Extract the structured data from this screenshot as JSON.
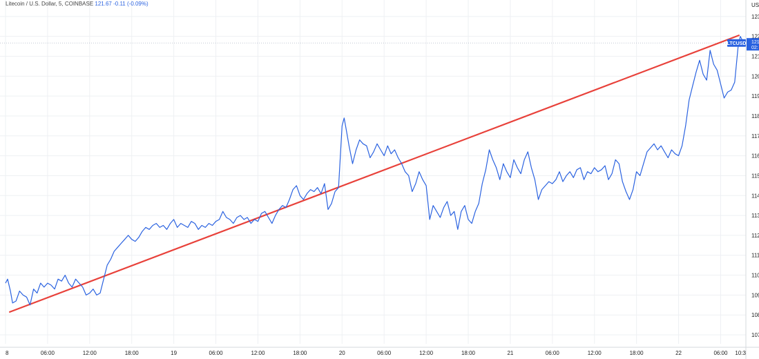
{
  "header": {
    "symbol_text": "Litecoin / U.S. Dollar, 5, COINBASE",
    "last": "121.67",
    "change": "-0.11",
    "change_pct": "(-0.09%)"
  },
  "price_axis": {
    "currency": "US",
    "ticks": [
      "123.",
      "122.",
      "121.",
      "120.",
      "119.",
      "118.",
      "117.",
      "116.",
      "115.",
      "114.",
      "113.",
      "112.",
      "111.",
      "110.",
      "109.",
      "108.",
      "107."
    ],
    "tick_values": [
      123,
      122,
      121,
      120,
      119,
      118,
      117,
      116,
      115,
      114,
      113,
      112,
      111,
      110,
      109,
      108,
      107
    ],
    "ylim": [
      106.55,
      123.55
    ]
  },
  "last_label": {
    "symbol": "LTCUSD",
    "price": "121.",
    "countdown": "02:"
  },
  "colors": {
    "series": "#2a62e0",
    "trend": "#e8413a",
    "grid": "#eef0f3",
    "axis_text": "#222222",
    "label_bg": "#2a62e0"
  },
  "chart_data": {
    "type": "line",
    "x_unit": "hours since first sample",
    "xlim": [
      0,
      105.6
    ],
    "x_ticks": [
      {
        "label": "8",
        "x": 0
      },
      {
        "label": "06:00",
        "x": 6
      },
      {
        "label": "12:00",
        "x": 12
      },
      {
        "label": "18:00",
        "x": 18
      },
      {
        "label": "19",
        "x": 24
      },
      {
        "label": "06:00",
        "x": 30
      },
      {
        "label": "12:00",
        "x": 36
      },
      {
        "label": "18:00",
        "x": 42
      },
      {
        "label": "20",
        "x": 48
      },
      {
        "label": "06:00",
        "x": 54
      },
      {
        "label": "12:00",
        "x": 60
      },
      {
        "label": "18:00",
        "x": 66
      },
      {
        "label": "21",
        "x": 72
      },
      {
        "label": "06:00",
        "x": 78
      },
      {
        "label": "12:00",
        "x": 84
      },
      {
        "label": "18:00",
        "x": 90
      },
      {
        "label": "22",
        "x": 96
      },
      {
        "label": "06:00",
        "x": 102
      },
      {
        "label": "10:3",
        "x": 105.6
      }
    ],
    "series": [
      {
        "name": "LTCUSD",
        "points": [
          [
            0,
            109.6
          ],
          [
            0.3,
            109.8
          ],
          [
            0.7,
            109.2
          ],
          [
            1,
            108.6
          ],
          [
            1.5,
            108.7
          ],
          [
            2,
            109.2
          ],
          [
            2.5,
            109
          ],
          [
            3,
            108.9
          ],
          [
            3.5,
            108.5
          ],
          [
            4,
            109.3
          ],
          [
            4.5,
            109.1
          ],
          [
            5,
            109.6
          ],
          [
            5.5,
            109.4
          ],
          [
            6,
            109.6
          ],
          [
            6.5,
            109.5
          ],
          [
            7,
            109.3
          ],
          [
            7.5,
            109.8
          ],
          [
            8,
            109.7
          ],
          [
            8.5,
            110
          ],
          [
            9,
            109.6
          ],
          [
            9.5,
            109.4
          ],
          [
            10,
            109.8
          ],
          [
            10.5,
            109.6
          ],
          [
            11,
            109.4
          ],
          [
            11.5,
            109
          ],
          [
            12,
            109.1
          ],
          [
            12.5,
            109.3
          ],
          [
            13,
            109.0
          ],
          [
            13.5,
            109.1
          ],
          [
            14,
            109.8
          ],
          [
            14.5,
            110.5
          ],
          [
            15,
            110.8
          ],
          [
            15.5,
            111.2
          ],
          [
            16,
            111.4
          ],
          [
            16.5,
            111.6
          ],
          [
            17,
            111.8
          ],
          [
            17.5,
            112
          ],
          [
            18,
            111.8
          ],
          [
            18.5,
            111.7
          ],
          [
            19,
            111.9
          ],
          [
            19.5,
            112.2
          ],
          [
            20,
            112.4
          ],
          [
            20.5,
            112.3
          ],
          [
            21,
            112.5
          ],
          [
            21.5,
            112.6
          ],
          [
            22,
            112.4
          ],
          [
            22.5,
            112.5
          ],
          [
            23,
            112.3
          ],
          [
            23.5,
            112.6
          ],
          [
            24,
            112.8
          ],
          [
            24.5,
            112.4
          ],
          [
            25,
            112.6
          ],
          [
            25.5,
            112.5
          ],
          [
            26,
            112.4
          ],
          [
            26.5,
            112.7
          ],
          [
            27,
            112.6
          ],
          [
            27.5,
            112.3
          ],
          [
            28,
            112.5
          ],
          [
            28.5,
            112.4
          ],
          [
            29,
            112.6
          ],
          [
            29.5,
            112.5
          ],
          [
            30,
            112.7
          ],
          [
            30.5,
            112.8
          ],
          [
            31,
            113.2
          ],
          [
            31.5,
            112.9
          ],
          [
            32,
            112.8
          ],
          [
            32.5,
            112.6
          ],
          [
            33,
            112.9
          ],
          [
            33.5,
            113
          ],
          [
            34,
            112.8
          ],
          [
            34.5,
            112.9
          ],
          [
            35,
            112.6
          ],
          [
            35.5,
            112.8
          ],
          [
            36,
            112.7
          ],
          [
            36.5,
            113.1
          ],
          [
            37,
            113.2
          ],
          [
            37.5,
            112.9
          ],
          [
            38,
            112.6
          ],
          [
            38.5,
            113
          ],
          [
            39,
            113.3
          ],
          [
            39.5,
            113.5
          ],
          [
            40,
            113.4
          ],
          [
            40.5,
            113.8
          ],
          [
            41,
            114.3
          ],
          [
            41.5,
            114.5
          ],
          [
            42,
            114
          ],
          [
            42.5,
            113.8
          ],
          [
            43,
            114.1
          ],
          [
            43.5,
            114.3
          ],
          [
            44,
            114.2
          ],
          [
            44.5,
            114.4
          ],
          [
            45,
            114.1
          ],
          [
            45.5,
            114.6
          ],
          [
            46,
            113.3
          ],
          [
            46.5,
            113.6
          ],
          [
            47,
            114.2
          ],
          [
            47.5,
            114.4
          ],
          [
            48,
            117.5
          ],
          [
            48.3,
            117.9
          ],
          [
            48.6,
            117.3
          ],
          [
            49,
            116.5
          ],
          [
            49.5,
            115.6
          ],
          [
            50,
            116.3
          ],
          [
            50.5,
            116.8
          ],
          [
            51,
            116.6
          ],
          [
            51.5,
            116.5
          ],
          [
            52,
            115.9
          ],
          [
            52.5,
            116.2
          ],
          [
            53,
            116.6
          ],
          [
            53.5,
            116.3
          ],
          [
            54,
            116.0
          ],
          [
            54.5,
            116.5
          ],
          [
            55,
            116.1
          ],
          [
            55.5,
            116.3
          ],
          [
            56,
            115.9
          ],
          [
            56.5,
            115.6
          ],
          [
            57,
            115.2
          ],
          [
            57.5,
            115.0
          ],
          [
            58,
            114.2
          ],
          [
            58.5,
            114.6
          ],
          [
            59,
            115.2
          ],
          [
            59.5,
            114.8
          ],
          [
            60,
            114.5
          ],
          [
            60.5,
            112.8
          ],
          [
            61,
            113.5
          ],
          [
            61.5,
            113.2
          ],
          [
            62,
            112.9
          ],
          [
            62.5,
            113.4
          ],
          [
            63,
            113.7
          ],
          [
            63.5,
            113
          ],
          [
            64,
            113.2
          ],
          [
            64.5,
            112.3
          ],
          [
            65,
            113.2
          ],
          [
            65.5,
            113.5
          ],
          [
            66,
            112.8
          ],
          [
            66.5,
            112.6
          ],
          [
            67,
            113.2
          ],
          [
            67.5,
            113.6
          ],
          [
            68,
            114.6
          ],
          [
            68.5,
            115.3
          ],
          [
            69,
            116.3
          ],
          [
            69.5,
            115.8
          ],
          [
            70,
            115.4
          ],
          [
            70.5,
            114.8
          ],
          [
            71,
            115.6
          ],
          [
            71.5,
            115.2
          ],
          [
            72,
            114.9
          ],
          [
            72.5,
            115.8
          ],
          [
            73,
            115.4
          ],
          [
            73.5,
            115.1
          ],
          [
            74,
            115.8
          ],
          [
            74.5,
            116.2
          ],
          [
            75,
            115.4
          ],
          [
            75.5,
            114.8
          ],
          [
            76,
            113.8
          ],
          [
            76.5,
            114.3
          ],
          [
            77,
            114.5
          ],
          [
            77.5,
            114.7
          ],
          [
            78,
            114.6
          ],
          [
            78.5,
            114.8
          ],
          [
            79,
            115.2
          ],
          [
            79.5,
            114.7
          ],
          [
            80,
            115.0
          ],
          [
            80.5,
            115.2
          ],
          [
            81,
            114.9
          ],
          [
            81.5,
            115.3
          ],
          [
            82,
            115.4
          ],
          [
            82.5,
            114.8
          ],
          [
            83,
            115.2
          ],
          [
            83.5,
            115.1
          ],
          [
            84,
            115.4
          ],
          [
            84.5,
            115.2
          ],
          [
            85,
            115.3
          ],
          [
            85.5,
            115.5
          ],
          [
            86,
            114.8
          ],
          [
            86.5,
            115.1
          ],
          [
            87,
            115.8
          ],
          [
            87.5,
            115.6
          ],
          [
            88,
            114.7
          ],
          [
            88.5,
            114.2
          ],
          [
            89,
            113.8
          ],
          [
            89.5,
            114.3
          ],
          [
            90,
            115.2
          ],
          [
            90.5,
            115.0
          ],
          [
            91,
            115.6
          ],
          [
            91.5,
            116.2
          ],
          [
            92,
            116.4
          ],
          [
            92.5,
            116.6
          ],
          [
            93,
            116.3
          ],
          [
            93.5,
            116.5
          ],
          [
            94,
            116.2
          ],
          [
            94.5,
            115.9
          ],
          [
            95,
            116.3
          ],
          [
            95.5,
            116.1
          ],
          [
            96,
            116.0
          ],
          [
            96.5,
            116.5
          ],
          [
            97,
            117.5
          ],
          [
            97.5,
            118.8
          ],
          [
            98,
            119.5
          ],
          [
            98.5,
            120.2
          ],
          [
            99,
            120.8
          ],
          [
            99.5,
            120.1
          ],
          [
            100,
            119.8
          ],
          [
            100.5,
            121.3
          ],
          [
            101,
            120.6
          ],
          [
            101.5,
            120.3
          ],
          [
            102,
            119.6
          ],
          [
            102.5,
            118.9
          ],
          [
            103,
            119.2
          ],
          [
            103.5,
            119.3
          ],
          [
            104,
            119.7
          ],
          [
            104.5,
            121.5
          ],
          [
            104.8,
            122.0
          ],
          [
            105.1,
            121.8
          ],
          [
            105.6,
            121.67
          ]
        ]
      }
    ],
    "trendline": {
      "x1": 0.6,
      "y1": 108.15,
      "x2": 104.6,
      "y2": 122.05
    },
    "last_price_line": 121.67,
    "grid": true
  }
}
